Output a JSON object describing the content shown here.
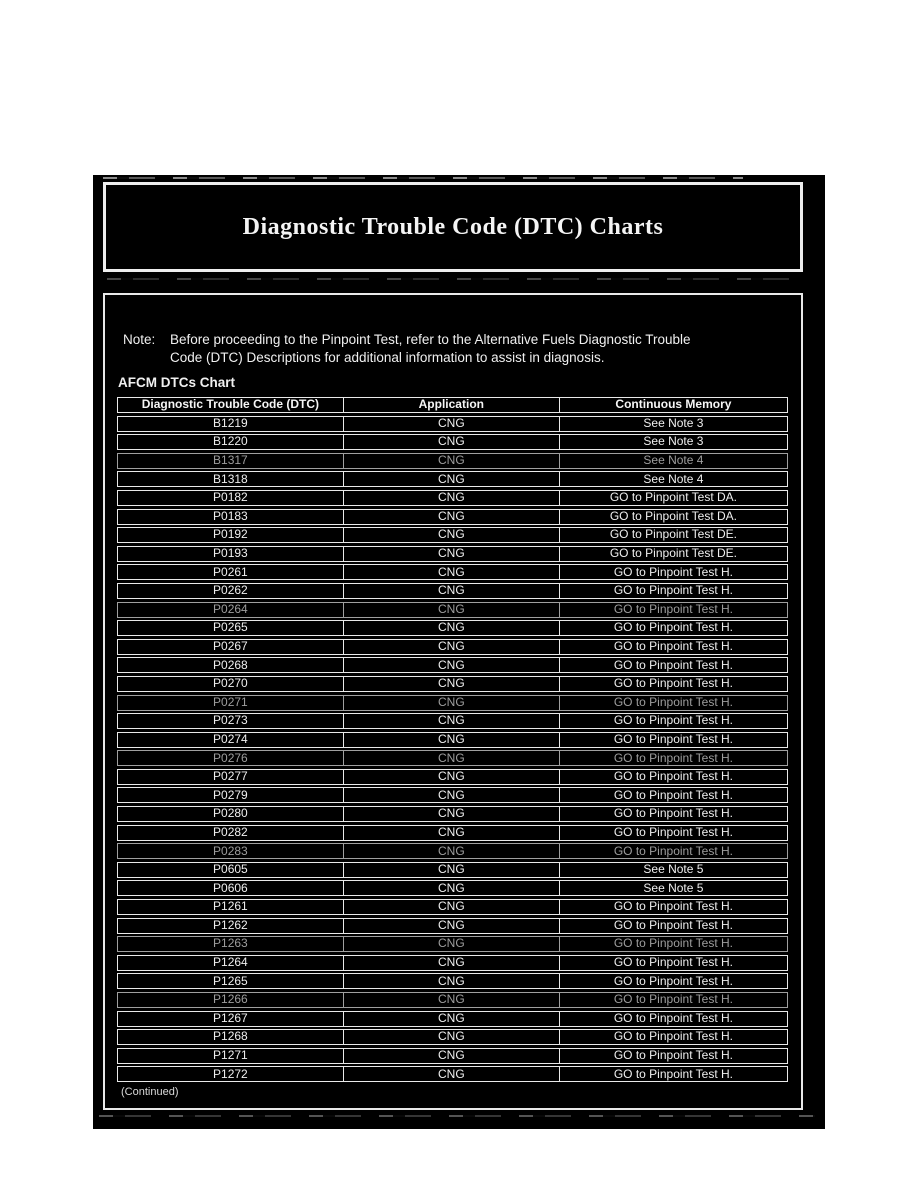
{
  "page": {
    "title": "Diagnostic Trouble Code (DTC) Charts",
    "note_label": "Note:",
    "note_lines": [
      "Before proceeding to the Pinpoint Test, refer to the Alternative Fuels Diagnostic Trouble",
      "Code (DTC) Descriptions for additional information to assist in diagnosis."
    ],
    "section_heading": "AFCM DTCs Chart",
    "continued": "(Continued)"
  },
  "table": {
    "headers": [
      "Diagnostic Trouble Code (DTC)",
      "Application",
      "Continuous Memory"
    ],
    "rows": [
      {
        "code": "B1219",
        "application": "CNG",
        "memory": "See Note 3",
        "faded": false
      },
      {
        "code": "B1220",
        "application": "CNG",
        "memory": "See Note 3",
        "faded": false
      },
      {
        "code": "B1317",
        "application": "CNG",
        "memory": "See Note 4",
        "faded": true
      },
      {
        "code": "B1318",
        "application": "CNG",
        "memory": "See Note 4",
        "faded": false
      },
      {
        "code": "P0182",
        "application": "CNG",
        "memory": "GO to Pinpoint Test DA.",
        "faded": false
      },
      {
        "code": "P0183",
        "application": "CNG",
        "memory": "GO to Pinpoint Test DA.",
        "faded": false
      },
      {
        "code": "P0192",
        "application": "CNG",
        "memory": "GO to Pinpoint Test DE.",
        "faded": false
      },
      {
        "code": "P0193",
        "application": "CNG",
        "memory": "GO to Pinpoint Test DE.",
        "faded": false
      },
      {
        "code": "P0261",
        "application": "CNG",
        "memory": "GO to Pinpoint Test H.",
        "faded": false
      },
      {
        "code": "P0262",
        "application": "CNG",
        "memory": "GO to Pinpoint Test H.",
        "faded": false
      },
      {
        "code": "P0264",
        "application": "CNG",
        "memory": "GO to Pinpoint Test H.",
        "faded": true
      },
      {
        "code": "P0265",
        "application": "CNG",
        "memory": "GO to Pinpoint Test H.",
        "faded": false
      },
      {
        "code": "P0267",
        "application": "CNG",
        "memory": "GO to Pinpoint Test H.",
        "faded": false
      },
      {
        "code": "P0268",
        "application": "CNG",
        "memory": "GO to Pinpoint Test H.",
        "faded": false
      },
      {
        "code": "P0270",
        "application": "CNG",
        "memory": "GO to Pinpoint Test H.",
        "faded": false
      },
      {
        "code": "P0271",
        "application": "CNG",
        "memory": "GO to Pinpoint Test H.",
        "faded": true
      },
      {
        "code": "P0273",
        "application": "CNG",
        "memory": "GO to Pinpoint Test H.",
        "faded": false
      },
      {
        "code": "P0274",
        "application": "CNG",
        "memory": "GO to Pinpoint Test H.",
        "faded": false
      },
      {
        "code": "P0276",
        "application": "CNG",
        "memory": "GO to Pinpoint Test H.",
        "faded": true
      },
      {
        "code": "P0277",
        "application": "CNG",
        "memory": "GO to Pinpoint Test H.",
        "faded": false
      },
      {
        "code": "P0279",
        "application": "CNG",
        "memory": "GO to Pinpoint Test H.",
        "faded": false
      },
      {
        "code": "P0280",
        "application": "CNG",
        "memory": "GO to Pinpoint Test H.",
        "faded": false
      },
      {
        "code": "P0282",
        "application": "CNG",
        "memory": "GO to Pinpoint Test H.",
        "faded": false
      },
      {
        "code": "P0283",
        "application": "CNG",
        "memory": "GO to Pinpoint Test H.",
        "faded": true
      },
      {
        "code": "P0605",
        "application": "CNG",
        "memory": "See Note 5",
        "faded": false
      },
      {
        "code": "P0606",
        "application": "CNG",
        "memory": "See Note 5",
        "faded": false
      },
      {
        "code": "P1261",
        "application": "CNG",
        "memory": "GO to Pinpoint Test H.",
        "faded": false
      },
      {
        "code": "P1262",
        "application": "CNG",
        "memory": "GO to Pinpoint Test H.",
        "faded": false
      },
      {
        "code": "P1263",
        "application": "CNG",
        "memory": "GO to Pinpoint Test H.",
        "faded": true
      },
      {
        "code": "P1264",
        "application": "CNG",
        "memory": "GO to Pinpoint Test H.",
        "faded": false
      },
      {
        "code": "P1265",
        "application": "CNG",
        "memory": "GO to Pinpoint Test H.",
        "faded": false
      },
      {
        "code": "P1266",
        "application": "CNG",
        "memory": "GO to Pinpoint Test H.",
        "faded": true
      },
      {
        "code": "P1267",
        "application": "CNG",
        "memory": "GO to Pinpoint Test H.",
        "faded": false
      },
      {
        "code": "P1268",
        "application": "CNG",
        "memory": "GO to Pinpoint Test H.",
        "faded": false
      },
      {
        "code": "P1271",
        "application": "CNG",
        "memory": "GO to Pinpoint Test H.",
        "faded": false
      },
      {
        "code": "P1272",
        "application": "CNG",
        "memory": "GO to Pinpoint Test H.",
        "faded": false
      }
    ]
  },
  "colors": {
    "paper": "#ffffff",
    "panel": "#000000",
    "text": "#f0f0f0",
    "faded_text": "#9d9d9d",
    "border": "#e9e9e9"
  }
}
